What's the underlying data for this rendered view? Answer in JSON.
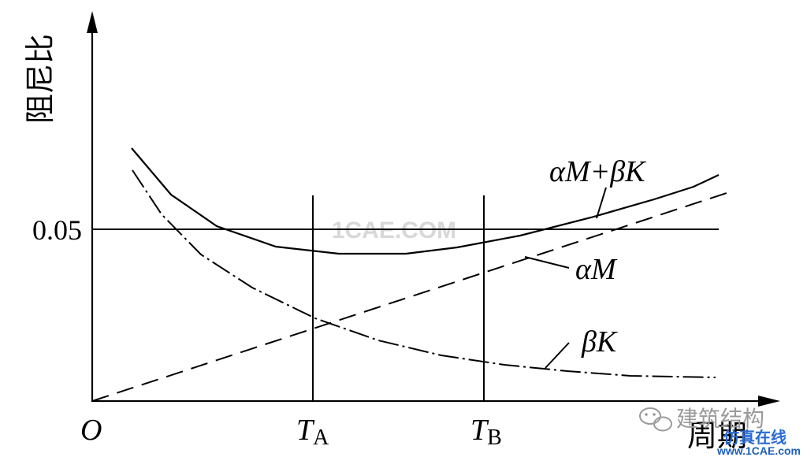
{
  "axes": {
    "y_label": "阻尼比",
    "x_label": "周期",
    "origin": "O",
    "y_tick": "0.05",
    "ta_main": "T",
    "ta_sub": "A",
    "tb_main": "T",
    "tb_sub": "B"
  },
  "curve_labels": {
    "sum": "αM+βK",
    "mass": "αM",
    "stiffness": "βK"
  },
  "watermarks": {
    "center": "1CAE.COM",
    "wechat": "建筑结构",
    "site_cn": "仿真在线",
    "site_url": "www.1CAE.com"
  },
  "colors": {
    "ink": "#000000",
    "watermark_blue": "#1f5fb3"
  }
}
